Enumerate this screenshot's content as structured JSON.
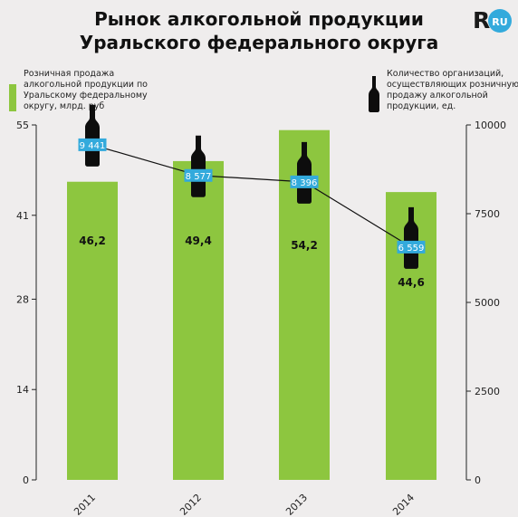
{
  "header": {
    "title_line1": "Рынок алкогольной продукции",
    "title_line2": "Уральского федерального округа",
    "logo_text": "R",
    "logo_badge": "RU"
  },
  "legend": {
    "bars_label": "Розничная продажа алкогольной продукции по Уральскому федеральному округу, млрд. руб",
    "line_label": "Количество организаций, осуществляющих розничную продажу алкогольной продукции, ед."
  },
  "colors": {
    "bar": "#8dc63f",
    "label_box": "#33aadc",
    "bottle": "#0d0d0d",
    "line": "#111111"
  },
  "chart_data": {
    "type": "bar",
    "categories": [
      "2011",
      "2012",
      "2013",
      "2014"
    ],
    "series": [
      {
        "values": [
          46.2,
          49.4,
          54.2,
          44.6
        ],
        "labels": [
          "46,2",
          "49,4",
          "54,2",
          "44,6"
        ],
        "axis": "left"
      },
      {
        "type": "line",
        "values": [
          9441,
          8577,
          8396,
          6559
        ],
        "labels": [
          "9 441",
          "8 577",
          "8 396",
          "6 559"
        ],
        "axis": "right"
      }
    ],
    "y_left": {
      "ticks": [
        0,
        14,
        28,
        41,
        55
      ],
      "ylim": [
        0,
        55
      ]
    },
    "y_right": {
      "ticks": [
        0,
        2500,
        5000,
        7500,
        10000
      ],
      "ylim": [
        0,
        10000
      ]
    },
    "grid": false
  }
}
